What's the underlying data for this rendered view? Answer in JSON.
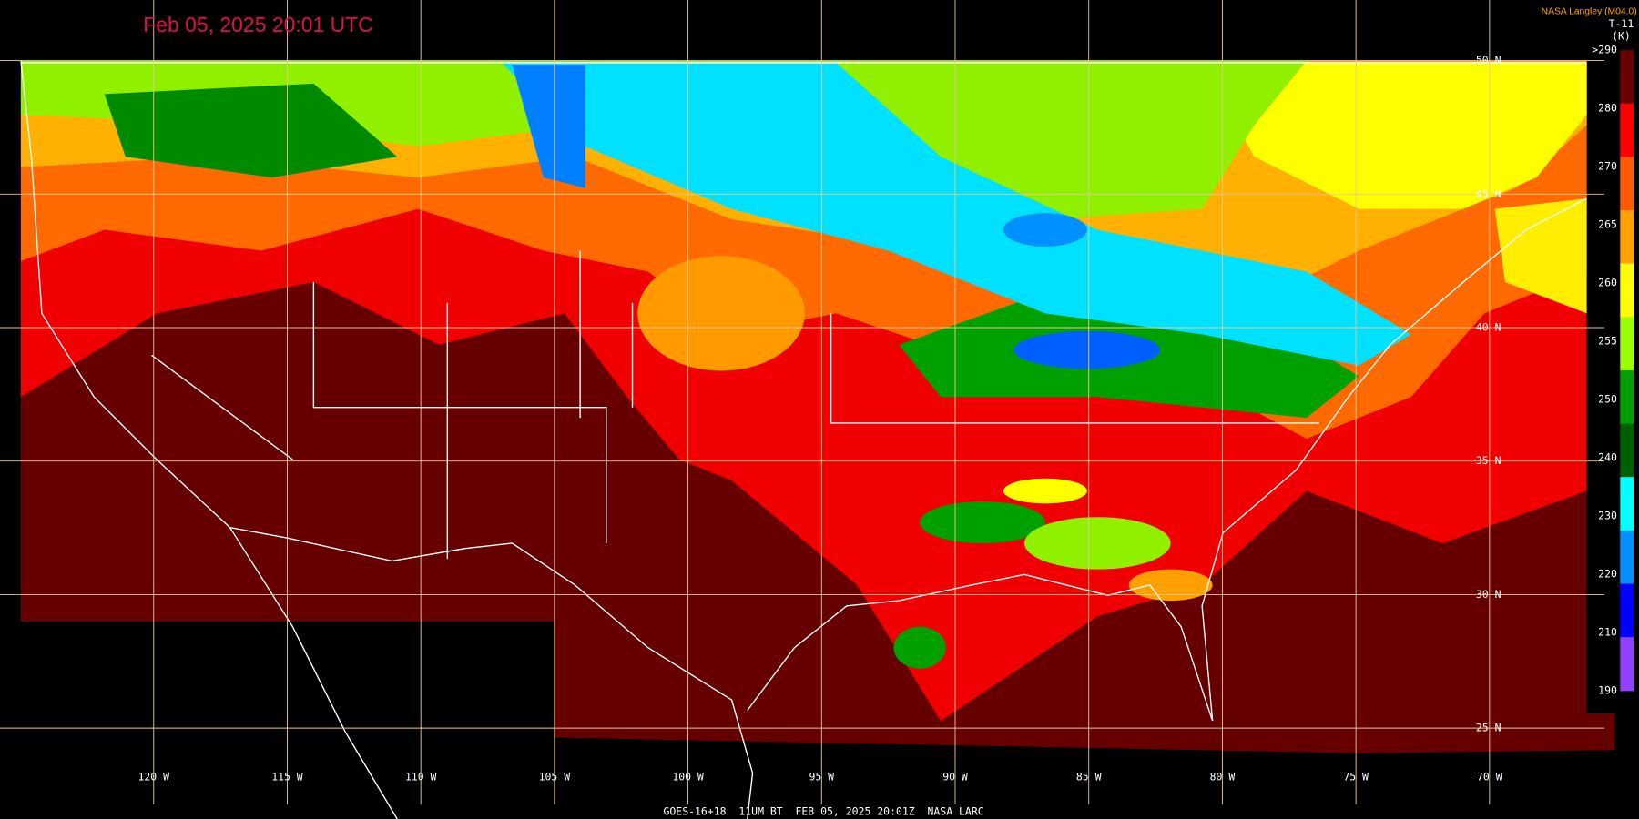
{
  "header": {
    "title": "Feb 05, 2025 20:01 UTC",
    "credit": "NASA Langley (M04.0)",
    "product": "T-11",
    "unit": "(K)"
  },
  "colorbar": {
    "labels": [
      ">290",
      "280",
      "270",
      "265",
      "260",
      "255",
      "250",
      "240",
      "230",
      "220",
      "210",
      "190"
    ],
    "colors": [
      "#6a0000",
      "#ff0000",
      "#ff5a00",
      "#ffa000",
      "#ffff00",
      "#9cff00",
      "#00a000",
      "#006000",
      "#00ffff",
      "#0090ff",
      "#0000ff",
      "#9040ff"
    ]
  },
  "grid": {
    "latitudes": [
      "50 N",
      "45 N",
      "40 N",
      "35 N",
      "30 N",
      "25 N"
    ],
    "longitudes": [
      "120 W",
      "115 W",
      "110 W",
      "105 W",
      "100 W",
      "95 W",
      "90 W",
      "85 W",
      "80 W",
      "75 W",
      "70 W"
    ]
  },
  "footer": "GOES-16+18  11UM BT  FEB 05, 2025 20:01Z  NASA LARC"
}
